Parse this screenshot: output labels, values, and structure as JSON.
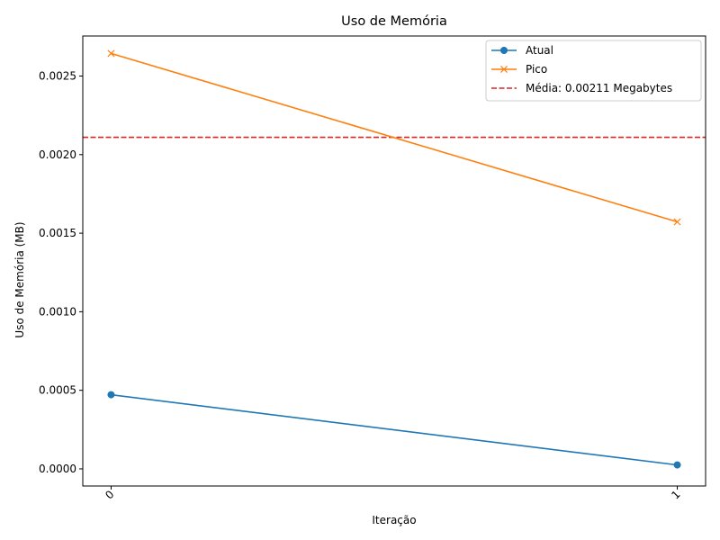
{
  "chart_data": {
    "type": "line",
    "title": "Uso de Memória",
    "xlabel": "Iteração",
    "ylabel": "Uso de Memória (MB)",
    "x": [
      0,
      1
    ],
    "x_tick_labels": [
      "0",
      "1"
    ],
    "xlim": [
      -0.05,
      1.05
    ],
    "ylim": [
      -0.000109,
      0.002755
    ],
    "y_ticks": [
      0.0,
      0.0005,
      0.001,
      0.0015,
      0.002,
      0.0025
    ],
    "y_tick_labels": [
      "0.0000",
      "0.0005",
      "0.0010",
      "0.0015",
      "0.0020",
      "0.0025"
    ],
    "grid": false,
    "legend_position": "upper right",
    "series": [
      {
        "name": "Atual",
        "values": [
          0.000472,
          2.5e-05
        ],
        "color": "#1f77b4",
        "marker": "circle"
      },
      {
        "name": "Pico",
        "values": [
          0.002644,
          0.001572
        ],
        "color": "#ff7f0e",
        "marker": "x"
      }
    ],
    "reference_lines": [
      {
        "name": "Média: 0.00211 Megabytes",
        "y": 0.00211,
        "color": "#d62728",
        "style": "dashed"
      }
    ]
  }
}
